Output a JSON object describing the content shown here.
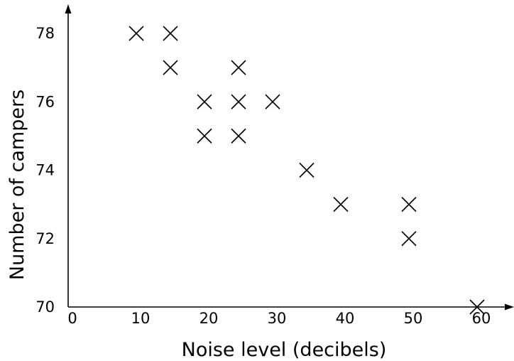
{
  "chart_data": {
    "type": "scatter",
    "xlabel": "Noise level (decibels)",
    "ylabel": "Number of campers",
    "xlim": [
      0,
      60
    ],
    "ylim": [
      70,
      78
    ],
    "x_ticks": [
      "0",
      "10",
      "20",
      "30",
      "40",
      "50",
      "60"
    ],
    "y_ticks": [
      "70",
      "72",
      "74",
      "76",
      "78"
    ],
    "grid": false,
    "marker": "x",
    "series": [
      {
        "points": [
          {
            "x": 10,
            "y": 78
          },
          {
            "x": 15,
            "y": 78
          },
          {
            "x": 15,
            "y": 77
          },
          {
            "x": 25,
            "y": 77
          },
          {
            "x": 20,
            "y": 76
          },
          {
            "x": 25,
            "y": 76
          },
          {
            "x": 30,
            "y": 76
          },
          {
            "x": 20,
            "y": 75
          },
          {
            "x": 25,
            "y": 75
          },
          {
            "x": 35,
            "y": 74
          },
          {
            "x": 40,
            "y": 73
          },
          {
            "x": 50,
            "y": 73
          },
          {
            "x": 50,
            "y": 72
          },
          {
            "x": 60,
            "y": 70
          }
        ]
      }
    ]
  }
}
